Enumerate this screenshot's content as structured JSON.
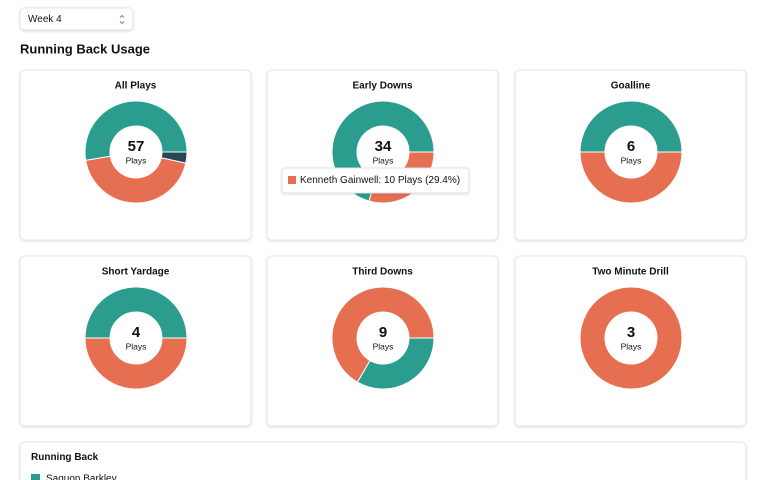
{
  "select": {
    "value": "Week 4"
  },
  "heading": "Running Back Usage",
  "chart_data": [
    {
      "type": "donut",
      "title": "All Plays",
      "total": 57,
      "center_label": "Plays",
      "categories": [
        "Saquon Barkley",
        "Kenneth Gainwell",
        null
      ],
      "values": [
        30,
        25,
        2
      ],
      "colors": [
        "#2a9d8f",
        "#e76f51",
        "#264653"
      ]
    },
    {
      "type": "donut",
      "title": "Early Downs",
      "total": 34,
      "center_label": "Plays",
      "categories": [
        "Saquon Barkley",
        "Kenneth Gainwell"
      ],
      "values": [
        24,
        10
      ],
      "colors": [
        "#2a9d8f",
        "#e76f51"
      ]
    },
    {
      "type": "donut",
      "title": "Goalline",
      "total": 6,
      "center_label": "Plays",
      "categories": [
        "Saquon Barkley",
        "Kenneth Gainwell"
      ],
      "values": [
        3,
        3
      ],
      "colors": [
        "#2a9d8f",
        "#e76f51"
      ]
    },
    {
      "type": "donut",
      "title": "Short Yardage",
      "total": 4,
      "center_label": "Plays",
      "categories": [
        "Saquon Barkley",
        "Kenneth Gainwell"
      ],
      "values": [
        2,
        2
      ],
      "colors": [
        "#2a9d8f",
        "#e76f51"
      ]
    },
    {
      "type": "donut",
      "title": "Third Downs",
      "total": 9,
      "center_label": "Plays",
      "categories": [
        "Kenneth Gainwell",
        "Saquon Barkley"
      ],
      "values": [
        6,
        3
      ],
      "colors": [
        "#e76f51",
        "#2a9d8f"
      ]
    },
    {
      "type": "donut",
      "title": "Two Minute Drill",
      "total": 3,
      "center_label": "Plays",
      "categories": [
        "Kenneth Gainwell"
      ],
      "values": [
        3
      ],
      "colors": [
        "#e76f51"
      ]
    }
  ],
  "tooltip": {
    "text": "Kenneth Gainwell: 10 Plays (29.4%)",
    "color": "#e76f51"
  },
  "legend": {
    "title": "Running Back",
    "items": [
      "Saquon Barkley"
    ],
    "colors": [
      "#2a9d8f"
    ]
  }
}
